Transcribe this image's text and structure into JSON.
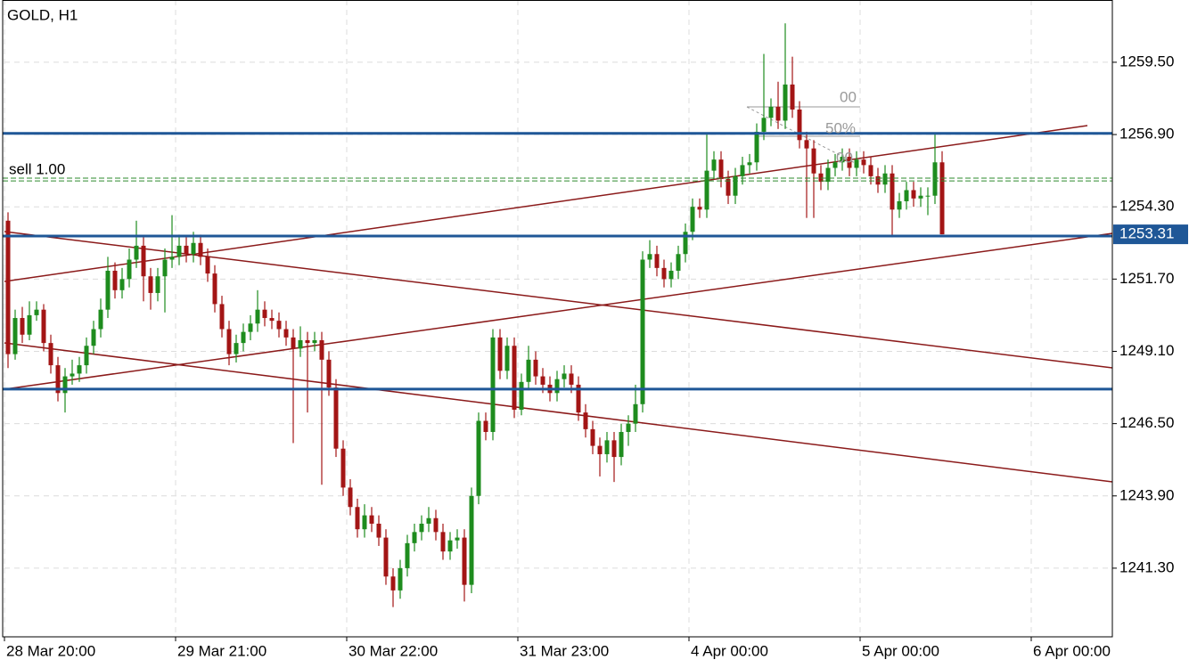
{
  "chart_data": {
    "type": "candlestick",
    "title": "GOLD, H1",
    "up_color": "#1e8c1e",
    "down_color": "#a31515",
    "level_color": "#1f5797",
    "order_color": "#2e8b2e",
    "grid": true,
    "ylim": [
      1238.83,
      1261.74
    ],
    "yticks": [
      {
        "value": 1259.5,
        "label": "1259.50"
      },
      {
        "value": 1256.9,
        "label": "1256.90"
      },
      {
        "value": 1254.3,
        "label": "1254.30"
      },
      {
        "value": 1251.7,
        "label": "1251.70"
      },
      {
        "value": 1249.1,
        "label": "1249.10"
      },
      {
        "value": 1246.5,
        "label": "1246.50"
      },
      {
        "value": 1243.9,
        "label": "1243.90"
      },
      {
        "value": 1241.3,
        "label": "1241.30"
      }
    ],
    "xlim": [
      -0.5,
      154.875
    ],
    "xticks": [
      {
        "value": 0,
        "label": "28 Mar 20:00"
      },
      {
        "value": 24,
        "label": "29 Mar 21:00"
      },
      {
        "value": 48,
        "label": "30 Mar 22:00"
      },
      {
        "value": 72,
        "label": "31 Mar 23:00"
      },
      {
        "value": 96,
        "label": "4 Apr 00:00"
      },
      {
        "value": 120,
        "label": "5 Apr 00:00"
      },
      {
        "value": 144,
        "label": "6 Apr 00:00"
      }
    ],
    "last_price": 1253.31,
    "levels": [
      1256.94,
      1253.25,
      1247.74
    ],
    "order": {
      "label": "sell 1.00",
      "prices": [
        1255.33,
        1255.23
      ]
    },
    "fib_labels": [
      "00",
      "50%",
      "00"
    ],
    "candles": [
      [
        1253.8,
        1254.1,
        1248.5,
        1249.0
      ],
      [
        1249.0,
        1250.6,
        1248.8,
        1250.3
      ],
      [
        1250.3,
        1250.7,
        1249.4,
        1249.7
      ],
      [
        1249.7,
        1250.9,
        1249.5,
        1250.4
      ],
      [
        1250.4,
        1250.9,
        1250.2,
        1250.6
      ],
      [
        1250.6,
        1250.8,
        1249.1,
        1249.4
      ],
      [
        1249.4,
        1249.7,
        1248.3,
        1248.6
      ],
      [
        1248.6,
        1248.9,
        1247.3,
        1247.6
      ],
      [
        1247.6,
        1248.5,
        1246.9,
        1248.2
      ],
      [
        1248.2,
        1248.8,
        1247.9,
        1248.3
      ],
      [
        1248.3,
        1248.9,
        1248.0,
        1248.6
      ],
      [
        1248.6,
        1249.6,
        1248.3,
        1249.3
      ],
      [
        1249.3,
        1250.2,
        1249.0,
        1249.9
      ],
      [
        1249.9,
        1251.0,
        1249.6,
        1250.6
      ],
      [
        1250.6,
        1252.5,
        1250.3,
        1252.0
      ],
      [
        1252.0,
        1252.3,
        1251.0,
        1251.3
      ],
      [
        1251.3,
        1252.1,
        1251.0,
        1251.7
      ],
      [
        1251.7,
        1252.8,
        1251.4,
        1252.4
      ],
      [
        1252.4,
        1253.8,
        1252.1,
        1252.9
      ],
      [
        1252.9,
        1253.2,
        1250.9,
        1251.8
      ],
      [
        1251.8,
        1252.1,
        1250.6,
        1251.2
      ],
      [
        1251.2,
        1252.1,
        1250.9,
        1251.8
      ],
      [
        1251.8,
        1252.8,
        1250.5,
        1252.4
      ],
      [
        1252.4,
        1254.0,
        1252.1,
        1252.5
      ],
      [
        1252.5,
        1253.3,
        1252.2,
        1252.9
      ],
      [
        1252.9,
        1253.2,
        1252.3,
        1252.6
      ],
      [
        1252.6,
        1253.4,
        1252.3,
        1253.0
      ],
      [
        1253.0,
        1253.3,
        1252.2,
        1252.5
      ],
      [
        1252.5,
        1252.8,
        1251.6,
        1251.9
      ],
      [
        1251.9,
        1252.2,
        1250.5,
        1250.8
      ],
      [
        1250.8,
        1251.1,
        1249.6,
        1249.9
      ],
      [
        1249.9,
        1250.2,
        1248.6,
        1249.0
      ],
      [
        1249.0,
        1249.7,
        1248.7,
        1249.4
      ],
      [
        1249.4,
        1250.1,
        1249.1,
        1249.8
      ],
      [
        1249.8,
        1250.4,
        1249.5,
        1250.1
      ],
      [
        1250.1,
        1251.3,
        1249.8,
        1250.6
      ],
      [
        1250.6,
        1250.9,
        1250.0,
        1250.3
      ],
      [
        1250.3,
        1250.6,
        1249.9,
        1250.2
      ],
      [
        1250.2,
        1250.5,
        1249.6,
        1249.9
      ],
      [
        1249.9,
        1250.2,
        1249.3,
        1249.6
      ],
      [
        1249.6,
        1249.9,
        1245.8,
        1249.2
      ],
      [
        1249.2,
        1250.0,
        1248.9,
        1249.5
      ],
      [
        1249.5,
        1249.8,
        1246.9,
        1249.4
      ],
      [
        1249.4,
        1249.8,
        1249.1,
        1249.5
      ],
      [
        1249.5,
        1249.8,
        1244.3,
        1248.8
      ],
      [
        1248.8,
        1249.1,
        1247.5,
        1247.8
      ],
      [
        1247.8,
        1248.1,
        1245.3,
        1245.6
      ],
      [
        1245.6,
        1245.9,
        1243.9,
        1244.2
      ],
      [
        1244.2,
        1244.5,
        1243.2,
        1243.5
      ],
      [
        1243.5,
        1243.8,
        1242.4,
        1242.7
      ],
      [
        1242.7,
        1243.6,
        1242.4,
        1243.2
      ],
      [
        1243.2,
        1243.5,
        1242.6,
        1242.9
      ],
      [
        1242.9,
        1243.2,
        1242.1,
        1242.4
      ],
      [
        1242.4,
        1242.7,
        1240.7,
        1241.0
      ],
      [
        1241.0,
        1241.3,
        1239.9,
        1240.5
      ],
      [
        1240.5,
        1241.6,
        1240.2,
        1241.3
      ],
      [
        1241.3,
        1242.5,
        1241.0,
        1242.2
      ],
      [
        1242.2,
        1242.9,
        1241.9,
        1242.6
      ],
      [
        1242.6,
        1243.2,
        1242.3,
        1242.9
      ],
      [
        1242.9,
        1243.5,
        1242.6,
        1243.1
      ],
      [
        1243.1,
        1243.4,
        1242.3,
        1242.6
      ],
      [
        1242.6,
        1242.9,
        1241.6,
        1241.9
      ],
      [
        1241.9,
        1242.6,
        1241.6,
        1242.3
      ],
      [
        1242.3,
        1242.7,
        1242.0,
        1242.4
      ],
      [
        1242.4,
        1242.7,
        1240.1,
        1240.7
      ],
      [
        1240.7,
        1244.2,
        1240.4,
        1243.9
      ],
      [
        1243.9,
        1246.9,
        1243.6,
        1246.6
      ],
      [
        1246.6,
        1246.9,
        1245.9,
        1246.2
      ],
      [
        1246.2,
        1249.9,
        1245.9,
        1249.6
      ],
      [
        1249.6,
        1249.9,
        1248.1,
        1248.4
      ],
      [
        1248.4,
        1249.6,
        1248.1,
        1249.3
      ],
      [
        1249.3,
        1249.6,
        1246.7,
        1247.0
      ],
      [
        1247.0,
        1248.3,
        1246.8,
        1248.0
      ],
      [
        1248.0,
        1249.3,
        1247.7,
        1248.8
      ],
      [
        1248.8,
        1249.1,
        1247.9,
        1248.2
      ],
      [
        1248.2,
        1248.5,
        1247.6,
        1247.9
      ],
      [
        1247.9,
        1248.2,
        1247.3,
        1247.6
      ],
      [
        1247.6,
        1248.4,
        1247.3,
        1248.1
      ],
      [
        1248.1,
        1248.6,
        1247.8,
        1248.3
      ],
      [
        1248.3,
        1248.6,
        1247.6,
        1247.9
      ],
      [
        1247.9,
        1248.2,
        1246.6,
        1246.9
      ],
      [
        1246.9,
        1247.2,
        1246.0,
        1246.3
      ],
      [
        1246.3,
        1246.6,
        1245.4,
        1245.7
      ],
      [
        1245.7,
        1246.0,
        1244.6,
        1245.4
      ],
      [
        1245.4,
        1246.2,
        1245.1,
        1245.9
      ],
      [
        1245.9,
        1246.2,
        1244.4,
        1245.3
      ],
      [
        1245.3,
        1246.5,
        1245.0,
        1246.2
      ],
      [
        1246.2,
        1246.8,
        1245.7,
        1246.5
      ],
      [
        1246.5,
        1247.9,
        1246.2,
        1247.2
      ],
      [
        1247.2,
        1252.7,
        1246.9,
        1252.4
      ],
      [
        1252.4,
        1253.1,
        1252.1,
        1252.6
      ],
      [
        1252.6,
        1252.9,
        1251.8,
        1252.1
      ],
      [
        1252.1,
        1252.4,
        1251.4,
        1251.7
      ],
      [
        1251.7,
        1252.3,
        1251.4,
        1252.0
      ],
      [
        1252.0,
        1252.9,
        1251.7,
        1252.6
      ],
      [
        1252.6,
        1253.7,
        1252.3,
        1253.4
      ],
      [
        1253.4,
        1254.6,
        1253.1,
        1254.3
      ],
      [
        1254.3,
        1254.6,
        1253.9,
        1254.2
      ],
      [
        1254.2,
        1256.9,
        1253.9,
        1255.6
      ],
      [
        1255.6,
        1256.3,
        1255.3,
        1256.0
      ],
      [
        1256.0,
        1256.3,
        1255.0,
        1255.3
      ],
      [
        1255.3,
        1255.6,
        1254.4,
        1254.7
      ],
      [
        1254.7,
        1255.7,
        1254.4,
        1255.4
      ],
      [
        1255.4,
        1256.1,
        1255.1,
        1255.8
      ],
      [
        1255.8,
        1256.2,
        1255.5,
        1255.9
      ],
      [
        1255.9,
        1257.3,
        1255.6,
        1257.0
      ],
      [
        1257.0,
        1259.8,
        1256.7,
        1257.5
      ],
      [
        1257.5,
        1258.2,
        1257.2,
        1257.9
      ],
      [
        1257.9,
        1258.8,
        1257.1,
        1257.4
      ],
      [
        1257.4,
        1260.9,
        1257.1,
        1258.7
      ],
      [
        1258.7,
        1259.7,
        1257.5,
        1257.8
      ],
      [
        1257.8,
        1258.1,
        1256.4,
        1256.7
      ],
      [
        1256.7,
        1257.0,
        1253.9,
        1256.4
      ],
      [
        1256.4,
        1256.7,
        1253.9,
        1255.5
      ],
      [
        1255.5,
        1255.8,
        1254.9,
        1255.2
      ],
      [
        1255.2,
        1256.0,
        1254.9,
        1255.7
      ],
      [
        1255.7,
        1256.2,
        1255.4,
        1255.9
      ],
      [
        1255.9,
        1256.4,
        1255.6,
        1256.1
      ],
      [
        1256.1,
        1256.4,
        1255.4,
        1255.7
      ],
      [
        1255.7,
        1256.3,
        1255.4,
        1256.0
      ],
      [
        1256.0,
        1256.3,
        1255.5,
        1255.8
      ],
      [
        1255.8,
        1256.1,
        1255.1,
        1255.4
      ],
      [
        1255.4,
        1255.7,
        1254.8,
        1255.1
      ],
      [
        1255.1,
        1255.8,
        1254.8,
        1255.5
      ],
      [
        1255.5,
        1255.8,
        1253.2,
        1254.2
      ],
      [
        1254.2,
        1254.8,
        1253.9,
        1254.5
      ],
      [
        1254.5,
        1255.2,
        1254.2,
        1254.9
      ],
      [
        1254.9,
        1255.2,
        1254.3,
        1254.6
      ],
      [
        1254.6,
        1255.0,
        1254.3,
        1254.7
      ],
      [
        1254.7,
        1255.0,
        1254.0,
        1254.7
      ],
      [
        1254.7,
        1256.9,
        1254.4,
        1255.9
      ],
      [
        1255.9,
        1256.3,
        1253.31,
        1253.31
      ]
    ]
  }
}
